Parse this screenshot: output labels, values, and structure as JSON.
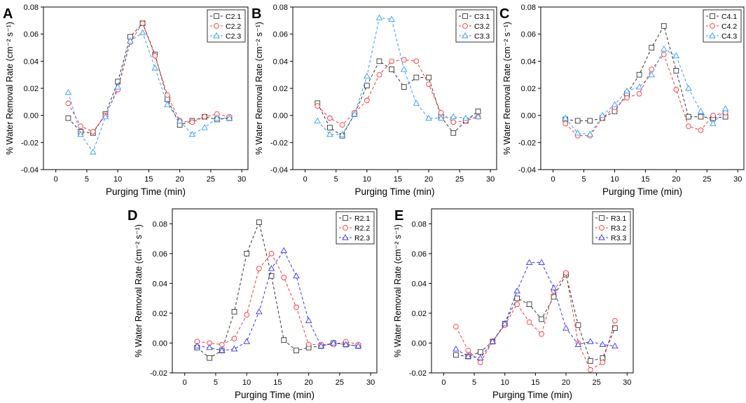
{
  "chart_data": [
    {
      "panel": "A",
      "type": "line",
      "xlabel": "Purging Time (min)",
      "ylabel": "% Water Removal Rate (cm⁻² s⁻¹)",
      "xlim": [
        -2,
        31
      ],
      "ylim": [
        -0.04,
        0.08
      ],
      "xticks": [
        0,
        5,
        10,
        15,
        20,
        25,
        30
      ],
      "yticks": [
        -0.04,
        -0.02,
        0.0,
        0.02,
        0.04,
        0.06,
        0.08
      ],
      "ytick_labels": [
        "-0.04",
        "-0.02",
        "0.00",
        "0.02",
        "0.04",
        "0.06",
        "0.08"
      ],
      "x": [
        2,
        4,
        6,
        8,
        10,
        12,
        14,
        16,
        18,
        20,
        22,
        24,
        26,
        28
      ],
      "legend": "top-right",
      "series": [
        {
          "name": "C2.1",
          "color": "#333333",
          "marker": "square",
          "values": [
            -0.002,
            -0.012,
            -0.013,
            0.001,
            0.025,
            0.058,
            0.068,
            0.045,
            0.012,
            -0.007,
            -0.004,
            -0.001,
            -0.003,
            -0.002
          ]
        },
        {
          "name": "C2.2",
          "color": "#ff3333",
          "marker": "circle",
          "values": [
            0.009,
            -0.008,
            -0.012,
            0.0,
            0.019,
            0.054,
            0.068,
            0.044,
            0.015,
            -0.004,
            -0.005,
            -0.001,
            0.001,
            -0.001
          ]
        },
        {
          "name": "C2.3",
          "color": "#3399ff",
          "marker": "triangle",
          "values": [
            0.017,
            -0.014,
            -0.027,
            -0.001,
            0.021,
            0.055,
            0.061,
            0.035,
            0.008,
            -0.004,
            -0.014,
            -0.009,
            -0.002,
            -0.002
          ]
        }
      ]
    },
    {
      "panel": "B",
      "type": "line",
      "xlabel": "Purging Time (min)",
      "ylabel": "% Water Removal Rate (cm⁻² s⁻¹)",
      "xlim": [
        -2,
        31
      ],
      "ylim": [
        -0.04,
        0.08
      ],
      "xticks": [
        0,
        5,
        10,
        15,
        20,
        25,
        30
      ],
      "yticks": [
        -0.04,
        -0.02,
        0.0,
        0.02,
        0.04,
        0.06,
        0.08
      ],
      "ytick_labels": [
        "-0.04",
        "-0.02",
        "0.00",
        "0.02",
        "0.04",
        "0.06",
        "0.08"
      ],
      "x": [
        2,
        4,
        6,
        8,
        10,
        12,
        14,
        16,
        18,
        20,
        22,
        24,
        26,
        28
      ],
      "legend": "top-right",
      "series": [
        {
          "name": "C3.1",
          "color": "#333333",
          "marker": "square",
          "values": [
            0.009,
            -0.009,
            -0.015,
            0.001,
            0.022,
            0.04,
            0.034,
            0.021,
            0.028,
            0.028,
            -0.001,
            -0.013,
            -0.004,
            0.003
          ]
        },
        {
          "name": "C3.2",
          "color": "#ff3333",
          "marker": "circle",
          "values": [
            0.007,
            -0.002,
            -0.007,
            0.002,
            0.011,
            0.03,
            0.04,
            0.041,
            0.04,
            0.023,
            0.002,
            -0.005,
            -0.004,
            -0.001
          ]
        },
        {
          "name": "C3.3",
          "color": "#3399ff",
          "marker": "triangle",
          "values": [
            -0.004,
            -0.014,
            -0.014,
            0.001,
            0.029,
            0.072,
            0.071,
            0.034,
            0.009,
            -0.002,
            -0.002,
            -0.001,
            -0.002,
            -0.001
          ]
        }
      ]
    },
    {
      "panel": "C",
      "type": "line",
      "xlabel": "Purging Time (min)",
      "ylabel": "% Water Removal Rate (cm⁻² s⁻¹)",
      "xlim": [
        -2,
        31
      ],
      "ylim": [
        -0.04,
        0.08
      ],
      "xticks": [
        0,
        5,
        10,
        15,
        20,
        25,
        30
      ],
      "yticks": [
        -0.04,
        -0.02,
        0.0,
        0.02,
        0.04,
        0.06,
        0.08
      ],
      "ytick_labels": [
        "-0.04",
        "-0.02",
        "0.00",
        "0.02",
        "0.04",
        "0.06",
        "0.08"
      ],
      "x": [
        2,
        4,
        6,
        8,
        10,
        12,
        14,
        16,
        18,
        20,
        22,
        24,
        26,
        28
      ],
      "legend": "top-right",
      "series": [
        {
          "name": "C4.1",
          "color": "#333333",
          "marker": "square",
          "values": [
            -0.003,
            -0.004,
            -0.004,
            -0.002,
            0.003,
            0.016,
            0.03,
            0.05,
            0.066,
            0.033,
            -0.001,
            -0.001,
            -0.002,
            -0.001
          ]
        },
        {
          "name": "C4.2",
          "color": "#ff3333",
          "marker": "circle",
          "values": [
            -0.006,
            -0.015,
            -0.015,
            -0.002,
            0.006,
            0.013,
            0.016,
            0.034,
            0.045,
            0.019,
            -0.008,
            -0.011,
            0.0,
            0.002
          ]
        },
        {
          "name": "C4.3",
          "color": "#3399ff",
          "marker": "triangle",
          "values": [
            -0.002,
            -0.013,
            -0.014,
            0.0,
            0.008,
            0.018,
            0.021,
            0.03,
            0.049,
            0.044,
            0.02,
            0.003,
            -0.006,
            0.005
          ]
        }
      ]
    },
    {
      "panel": "D",
      "type": "line",
      "xlabel": "Purging Time (min)",
      "ylabel": "% Water Removal Rate (cm⁻² s⁻¹)",
      "xlim": [
        -2,
        31
      ],
      "ylim": [
        -0.02,
        0.09
      ],
      "xticks": [
        0,
        5,
        10,
        15,
        20,
        25,
        30
      ],
      "yticks": [
        -0.02,
        0.0,
        0.02,
        0.04,
        0.06,
        0.08
      ],
      "ytick_labels": [
        "-0.02",
        "0.00",
        "0.02",
        "0.04",
        "0.06",
        "0.08"
      ],
      "x": [
        2,
        4,
        6,
        8,
        10,
        12,
        14,
        16,
        18,
        20,
        22,
        24,
        26,
        28
      ],
      "legend": "top-right",
      "series": [
        {
          "name": "R2.1",
          "color": "#333333",
          "marker": "square",
          "values": [
            -0.003,
            -0.01,
            -0.005,
            0.021,
            0.06,
            0.081,
            0.045,
            0.002,
            -0.005,
            -0.003,
            -0.002,
            0.0,
            -0.001,
            -0.002
          ]
        },
        {
          "name": "R2.2",
          "color": "#ff3333",
          "marker": "circle",
          "values": [
            0.001,
            0.0,
            -0.001,
            0.003,
            0.019,
            0.05,
            0.06,
            0.044,
            0.024,
            -0.001,
            -0.001,
            -0.001,
            0.001,
            -0.001
          ]
        },
        {
          "name": "R2.3",
          "color": "#3333ff",
          "marker": "triangle",
          "values": [
            -0.002,
            -0.003,
            -0.005,
            -0.004,
            0.001,
            0.021,
            0.05,
            0.062,
            0.045,
            0.015,
            -0.002,
            0.0,
            -0.001,
            -0.002
          ]
        }
      ]
    },
    {
      "panel": "E",
      "type": "line",
      "xlabel": "Purging Time (min)",
      "ylabel": "% Water Removal Rate (cm⁻² s⁻¹)",
      "xlim": [
        -2,
        31
      ],
      "ylim": [
        -0.02,
        0.09
      ],
      "xticks": [
        0,
        5,
        10,
        15,
        20,
        25,
        30
      ],
      "yticks": [
        -0.02,
        0.0,
        0.02,
        0.04,
        0.06,
        0.08
      ],
      "ytick_labels": [
        "-0.02",
        "0.00",
        "0.02",
        "0.04",
        "0.06",
        "0.08"
      ],
      "x": [
        2,
        4,
        6,
        8,
        10,
        12,
        14,
        16,
        18,
        20,
        22,
        24,
        26,
        28
      ],
      "legend": "top-right",
      "series": [
        {
          "name": "R3.1",
          "color": "#333333",
          "marker": "square",
          "values": [
            -0.008,
            -0.009,
            -0.006,
            0.001,
            0.013,
            0.03,
            0.026,
            0.016,
            0.031,
            0.046,
            0.012,
            -0.012,
            -0.01,
            0.01
          ]
        },
        {
          "name": "R3.2",
          "color": "#ff3333",
          "marker": "circle",
          "values": [
            0.011,
            -0.005,
            -0.013,
            0.001,
            0.012,
            0.026,
            0.014,
            0.006,
            0.035,
            0.047,
            0.0,
            -0.018,
            -0.013,
            0.015
          ]
        },
        {
          "name": "R3.3",
          "color": "#3333ff",
          "marker": "triangle",
          "values": [
            -0.004,
            -0.009,
            -0.01,
            0.001,
            0.013,
            0.035,
            0.054,
            0.054,
            0.037,
            0.01,
            -0.001,
            0.001,
            -0.001,
            -0.002
          ]
        }
      ]
    }
  ]
}
